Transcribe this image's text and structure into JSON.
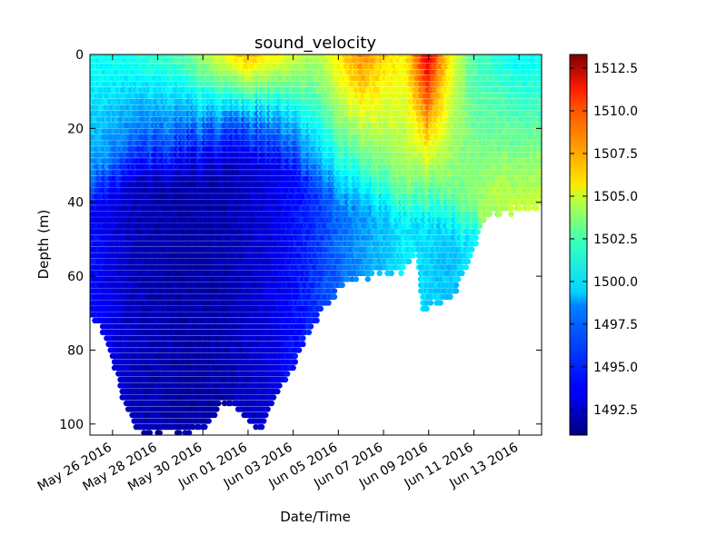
{
  "chart_data": {
    "type": "scatter",
    "title": "sound_velocity",
    "xlabel": "Date/Time",
    "ylabel": "Depth (m)",
    "x_axis_type": "date",
    "xlim": [
      "2016-05-25",
      "2016-06-14"
    ],
    "ylim": [
      103,
      0
    ],
    "y_inverted": true,
    "colormap": "jet",
    "color_range": [
      1491,
      1513.3
    ],
    "x_ticks": [
      {
        "value": "2016-05-26",
        "label": "May 26 2016"
      },
      {
        "value": "2016-05-28",
        "label": "May 28 2016"
      },
      {
        "value": "2016-05-30",
        "label": "May 30 2016"
      },
      {
        "value": "2016-06-01",
        "label": "Jun 01 2016"
      },
      {
        "value": "2016-06-03",
        "label": "Jun 03 2016"
      },
      {
        "value": "2016-06-05",
        "label": "Jun 05 2016"
      },
      {
        "value": "2016-06-07",
        "label": "Jun 07 2016"
      },
      {
        "value": "2016-06-09",
        "label": "Jun 09 2016"
      },
      {
        "value": "2016-06-11",
        "label": "Jun 11 2016"
      },
      {
        "value": "2016-06-13",
        "label": "Jun 13 2016"
      }
    ],
    "y_ticks": [
      {
        "value": 0,
        "label": "0"
      },
      {
        "value": 20,
        "label": "20"
      },
      {
        "value": 40,
        "label": "40"
      },
      {
        "value": 60,
        "label": "60"
      },
      {
        "value": 80,
        "label": "80"
      },
      {
        "value": 100,
        "label": "100"
      }
    ],
    "colorbar_ticks": [
      {
        "value": 1492.5,
        "label": "1492.5"
      },
      {
        "value": 1495.0,
        "label": "1495.0"
      },
      {
        "value": 1497.5,
        "label": "1497.5"
      },
      {
        "value": 1500.0,
        "label": "1500.0"
      },
      {
        "value": 1502.5,
        "label": "1502.5"
      },
      {
        "value": 1505.0,
        "label": "1505.0"
      },
      {
        "value": 1507.5,
        "label": "1507.5"
      },
      {
        "value": 1510.0,
        "label": "1510.0"
      },
      {
        "value": 1512.5,
        "label": "1512.5"
      }
    ],
    "profile_max_depth": [
      {
        "date": "2016-05-25",
        "depth": 71
      },
      {
        "date": "2016-05-25T12:00",
        "depth": 74
      },
      {
        "date": "2016-05-26",
        "depth": 82
      },
      {
        "date": "2016-05-26T12:00",
        "depth": 94
      },
      {
        "date": "2016-05-27",
        "depth": 101
      },
      {
        "date": "2016-05-27T12:00",
        "depth": 103
      },
      {
        "date": "2016-05-28",
        "depth": 102
      },
      {
        "date": "2016-05-29",
        "depth": 102
      },
      {
        "date": "2016-05-30",
        "depth": 101
      },
      {
        "date": "2016-05-31",
        "depth": 94
      },
      {
        "date": "2016-06-01",
        "depth": 98
      },
      {
        "date": "2016-06-01T12:00",
        "depth": 102
      },
      {
        "date": "2016-06-02",
        "depth": 95
      },
      {
        "date": "2016-06-03",
        "depth": 84
      },
      {
        "date": "2016-06-03T12:00",
        "depth": 77
      },
      {
        "date": "2016-06-04",
        "depth": 72
      },
      {
        "date": "2016-06-05",
        "depth": 64
      },
      {
        "date": "2016-06-05T12:00",
        "depth": 61
      },
      {
        "date": "2016-06-06",
        "depth": 60
      },
      {
        "date": "2016-06-07",
        "depth": 59
      },
      {
        "date": "2016-06-08",
        "depth": 58
      },
      {
        "date": "2016-06-08T12:00",
        "depth": 52
      },
      {
        "date": "2016-06-08T18:00",
        "depth": 71
      },
      {
        "date": "2016-06-09",
        "depth": 68
      },
      {
        "date": "2016-06-10",
        "depth": 67
      },
      {
        "date": "2016-06-10T12:00",
        "depth": 59
      },
      {
        "date": "2016-06-11",
        "depth": 53
      },
      {
        "date": "2016-06-11T12:00",
        "depth": 43
      },
      {
        "date": "2016-06-12",
        "depth": 43
      },
      {
        "date": "2016-06-13",
        "depth": 42
      },
      {
        "date": "2016-06-14",
        "depth": 41
      }
    ],
    "thermocline_depth": [
      {
        "date": "2016-05-25",
        "depth": 30
      },
      {
        "date": "2016-05-27",
        "depth": 24
      },
      {
        "date": "2016-05-30",
        "depth": 22
      },
      {
        "date": "2016-06-01",
        "depth": 18
      },
      {
        "date": "2016-06-03",
        "depth": 20
      },
      {
        "date": "2016-06-05",
        "depth": 30
      },
      {
        "date": "2016-06-07",
        "depth": 32
      },
      {
        "date": "2016-06-09",
        "depth": 35
      },
      {
        "date": "2016-06-11",
        "depth": 40
      },
      {
        "date": "2016-06-14",
        "depth": 41
      }
    ],
    "surface_velocity": [
      {
        "date": "2016-05-25",
        "value": 1499.5
      },
      {
        "date": "2016-05-27",
        "value": 1500.0
      },
      {
        "date": "2016-05-29",
        "value": 1501.0
      },
      {
        "date": "2016-05-31",
        "value": 1504.5
      },
      {
        "date": "2016-06-01",
        "value": 1506.5
      },
      {
        "date": "2016-06-02",
        "value": 1505.0
      },
      {
        "date": "2016-06-04",
        "value": 1503.0
      },
      {
        "date": "2016-06-05",
        "value": 1505.0
      },
      {
        "date": "2016-06-06",
        "value": 1507.5
      },
      {
        "date": "2016-06-07",
        "value": 1506.0
      },
      {
        "date": "2016-06-08",
        "value": 1505.0
      },
      {
        "date": "2016-06-09",
        "value": 1511.0
      },
      {
        "date": "2016-06-10",
        "value": 1505.0
      },
      {
        "date": "2016-06-11",
        "value": 1501.0
      },
      {
        "date": "2016-06-13",
        "value": 1499.5
      },
      {
        "date": "2016-06-14",
        "value": 1499.5
      }
    ],
    "deep_velocity": [
      {
        "date": "2016-05-25",
        "value": 1494.0
      },
      {
        "date": "2016-05-27",
        "value": 1492.3
      },
      {
        "date": "2016-05-29",
        "value": 1491.8
      },
      {
        "date": "2016-05-31",
        "value": 1492.0
      },
      {
        "date": "2016-06-02",
        "value": 1493.0
      },
      {
        "date": "2016-06-04",
        "value": 1494.8
      },
      {
        "date": "2016-06-06",
        "value": 1497.0
      },
      {
        "date": "2016-06-08",
        "value": 1499.0
      },
      {
        "date": "2016-06-10",
        "value": 1498.0
      },
      {
        "date": "2016-06-12",
        "value": 1500.0
      },
      {
        "date": "2016-06-14",
        "value": 1500.5
      }
    ]
  }
}
